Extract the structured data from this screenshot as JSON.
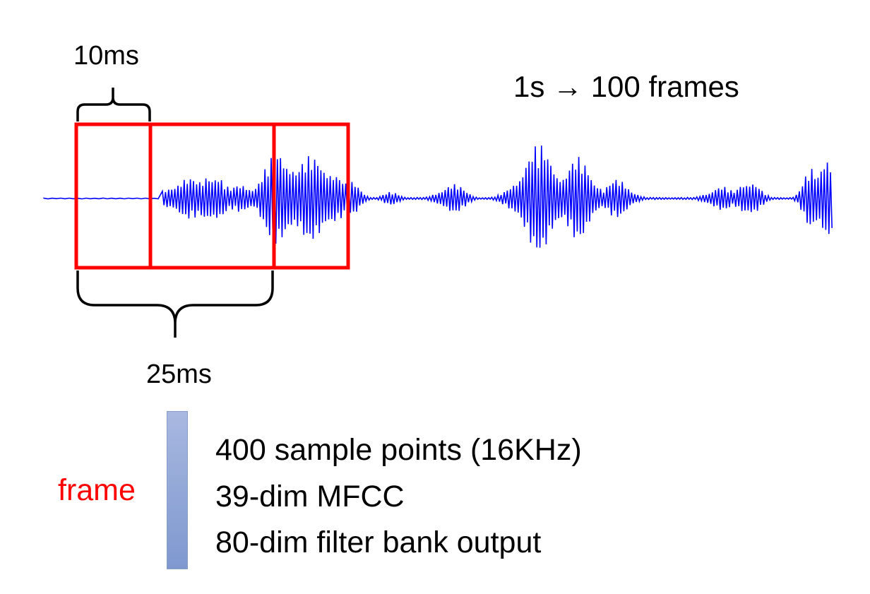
{
  "labels": {
    "hop": "10ms",
    "window": "25ms",
    "rate": "1s → 100 frames",
    "frame": "frame"
  },
  "frame_info": [
    "400 sample points (16KHz)",
    "39-dim MFCC",
    "80-dim filter bank output"
  ],
  "colors": {
    "waveform": "#0000ff",
    "window_box": "#ff0000",
    "frame_label": "#ff0000",
    "brace": "#000000",
    "frame_bar_top": "#a8b8e0",
    "frame_bar_bottom": "#7f98cf"
  },
  "icons": {
    "frame_vector": "vertical-bar"
  }
}
